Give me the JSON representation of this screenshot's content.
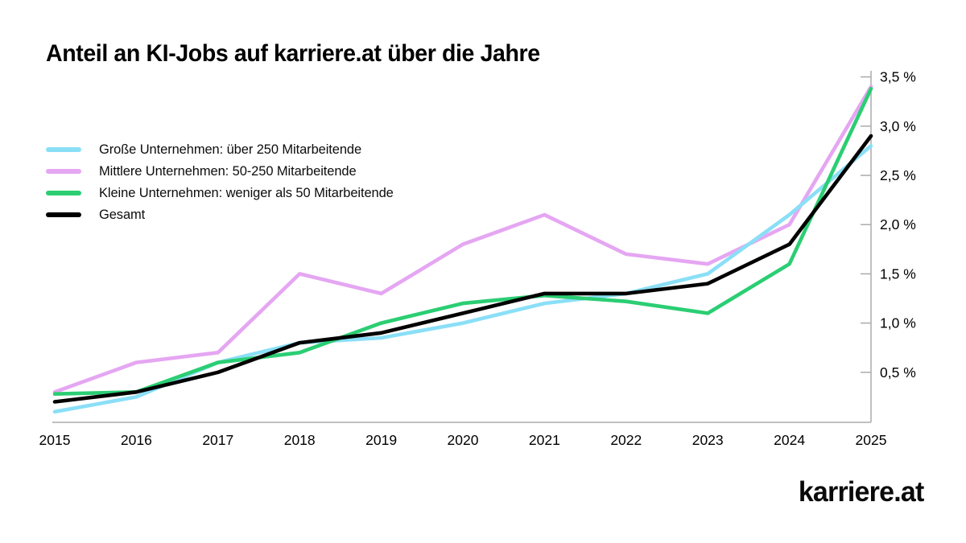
{
  "title": "Anteil an KI-Jobs auf karriere.at über die Jahre",
  "brand": {
    "logo_text": "karriere.at"
  },
  "legend": [
    {
      "label": "Große Unternehmen: über 250 Mitarbeitende",
      "color": "#8ADFF7"
    },
    {
      "label": "Mittlere Unternehmen: 50-250 Mitarbeitende",
      "color": "#E5A6F2"
    },
    {
      "label": "Kleine Unternehmen: weniger als 50 Mitarbeitende",
      "color": "#2BCE73"
    },
    {
      "label": "Gesamt",
      "color": "#000000"
    }
  ],
  "chart_data": {
    "type": "line",
    "title": "Anteil an KI-Jobs auf karriere.at über die Jahre",
    "x": [
      2015,
      2016,
      2017,
      2018,
      2019,
      2020,
      2021,
      2022,
      2023,
      2024,
      2025
    ],
    "series": [
      {
        "name": "Große Unternehmen: über 250 Mitarbeitende",
        "color": "#8ADFF7",
        "values": [
          0.1,
          0.25,
          0.6,
          0.8,
          0.85,
          1.0,
          1.2,
          1.3,
          1.5,
          2.1,
          2.8
        ]
      },
      {
        "name": "Mittlere Unternehmen: 50-250 Mitarbeitende",
        "color": "#E5A6F2",
        "values": [
          0.3,
          0.6,
          0.7,
          1.5,
          1.3,
          1.8,
          2.1,
          1.7,
          1.6,
          2.0,
          3.4
        ]
      },
      {
        "name": "Kleine Unternehmen: weniger als 50 Mitarbeitende",
        "color": "#2BCE73",
        "values": [
          0.28,
          0.3,
          0.6,
          0.7,
          1.0,
          1.2,
          1.28,
          1.22,
          1.1,
          1.6,
          3.38
        ]
      },
      {
        "name": "Gesamt",
        "color": "#000000",
        "values": [
          0.2,
          0.3,
          0.5,
          0.8,
          0.9,
          1.1,
          1.3,
          1.3,
          1.4,
          1.8,
          2.9
        ]
      }
    ],
    "ylim": [
      0,
      3.5
    ],
    "ytick_step": 0.5,
    "ytick_labels": [
      "0,5 %",
      "1,0 %",
      "1,5 %",
      "2,0 %",
      "2,5 %",
      "3,0 %",
      "3,5 %"
    ],
    "yaxis_side": "right",
    "grid": false,
    "legend_position": "upper-left",
    "axis_color": "#ABABAB",
    "draw_order": [
      1,
      0,
      2,
      3
    ]
  }
}
